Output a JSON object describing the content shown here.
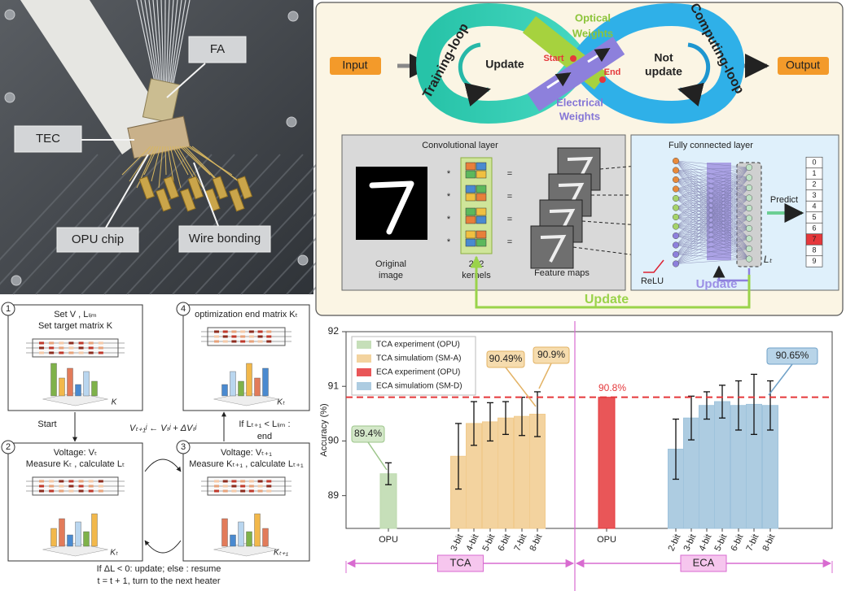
{
  "photo": {
    "labels": [
      "FA",
      "TEC",
      "OPU chip",
      "Wire bonding"
    ]
  },
  "loop": {
    "input": "Input",
    "output": "Output",
    "training_loop": "Training-loop",
    "computing_loop": "Computing-loop",
    "optical_weights": [
      "Optical",
      "Weights"
    ],
    "electrical_weights": [
      "Electrical",
      "Weights"
    ],
    "update": "Update",
    "not_update": [
      "Not",
      "update"
    ],
    "start": "Start",
    "end": "End"
  },
  "network": {
    "conv_title": "Convolutional layer",
    "fc_title": "Fully connected layer",
    "original_image": [
      "Original",
      "image"
    ],
    "kernels": [
      "2×2",
      "kernels"
    ],
    "feature_maps": "Feature maps",
    "conv_ops": [
      "*",
      "="
    ],
    "relu": "ReLU",
    "fc_update": "Update",
    "predict": "Predict",
    "loss": "Lₜ",
    "outputs": [
      "0",
      "1",
      "2",
      "3",
      "4",
      "5",
      "6",
      "7",
      "8",
      "9"
    ],
    "update": "Update"
  },
  "flowchart": {
    "steps": [
      {
        "number": "1",
        "lines": [
          "Set V , Lₗᵢₘ",
          "Set target matrix K"
        ],
        "matrix": "K"
      },
      {
        "number": "2",
        "lines": [
          "Voltage: Vₜ",
          "Measure Kₜ , calculate Lₜ"
        ],
        "matrix": "Kₜ"
      },
      {
        "number": "3",
        "lines": [
          "Voltage: Vₜ₊₁",
          "Measure Kₜ₊₁ , calculate Lₜ₊₁"
        ],
        "matrix": "Kₜ₊₁"
      },
      {
        "number": "4",
        "lines": [
          "optimization end matrix Kₜ"
        ],
        "matrix": "Kₜ"
      }
    ],
    "start": "Start",
    "update_rule": "Vₜ₊₁ʲ ← Vₜʲ + ΔVₜʲ",
    "end_condition": [
      "If Lₜ₊₁ < Lₗᵢₘ :",
      "end"
    ],
    "footer": [
      "If ΔL < 0: update; else : resume",
      "t = t + 1, turn to the next heater"
    ]
  },
  "chart_data": {
    "type": "bar",
    "ylabel": "Accuracy (%)",
    "categories": [
      "OPU",
      "3-bit",
      "4-bit",
      "5-bit",
      "6-bit",
      "7-bit",
      "8-bit",
      "OPU",
      "2-bit",
      "3-bit",
      "4-bit",
      "5-bit",
      "6-bit",
      "7-bit",
      "8-bit"
    ],
    "groups": [
      "TCA",
      "ECA"
    ],
    "series": [
      {
        "name": "TCA experiment (OPU)",
        "color": "#bcd9ad",
        "values": [
          89.4,
          null,
          null,
          null,
          null,
          null,
          null,
          null,
          null,
          null,
          null,
          null,
          null,
          null,
          null
        ],
        "errors": [
          0.2,
          null,
          null,
          null,
          null,
          null,
          null,
          null,
          null,
          null,
          null,
          null,
          null,
          null,
          null
        ],
        "value_labels": [
          "89.4%",
          null,
          null,
          null,
          null,
          null,
          null,
          null,
          null,
          null,
          null,
          null,
          null,
          null,
          null
        ]
      },
      {
        "name": "TCA simulatiom (SM-A)",
        "color": "#f1cb8e",
        "values": [
          null,
          89.72,
          90.32,
          90.35,
          90.42,
          90.45,
          90.49,
          null,
          null,
          null,
          null,
          null,
          null,
          null,
          null
        ],
        "errors": [
          null,
          0.6,
          0.4,
          0.35,
          0.3,
          0.35,
          0.41,
          null,
          null,
          null,
          null,
          null,
          null,
          null,
          null
        ],
        "value_labels": [
          null,
          null,
          null,
          null,
          null,
          null,
          "90.49%",
          null,
          null,
          null,
          null,
          null,
          null,
          null,
          null
        ]
      },
      {
        "name": "ECA experiment (OPU)",
        "color": "#e5383b",
        "values": [
          null,
          null,
          null,
          null,
          null,
          null,
          null,
          90.8,
          null,
          null,
          null,
          null,
          null,
          null,
          null
        ],
        "errors": [
          null,
          null,
          null,
          null,
          null,
          null,
          null,
          null,
          null,
          null,
          null,
          null,
          null,
          null,
          null
        ],
        "value_labels": [
          null,
          null,
          null,
          null,
          null,
          null,
          null,
          "90.8%",
          null,
          null,
          null,
          null,
          null,
          null,
          null
        ]
      },
      {
        "name": "ECA simulatiom (SM-D)",
        "color": "#9fc3dc",
        "values": [
          null,
          null,
          null,
          null,
          null,
          null,
          null,
          null,
          89.85,
          90.42,
          90.65,
          90.72,
          90.65,
          90.67,
          90.65
        ],
        "errors": [
          null,
          null,
          null,
          null,
          null,
          null,
          null,
          null,
          0.55,
          0.4,
          0.25,
          0.3,
          0.45,
          0.55,
          0.45
        ],
        "value_labels": [
          null,
          null,
          null,
          null,
          null,
          null,
          null,
          null,
          null,
          null,
          null,
          null,
          null,
          null,
          "90.65%"
        ]
      }
    ],
    "annotations": [
      "90.9%"
    ],
    "reference_line": 90.8,
    "reference_color": "#e5383b",
    "ylim": [
      88.4,
      92
    ],
    "yticks": [
      89,
      90,
      91,
      92
    ],
    "legend": "upper left",
    "grid": false
  }
}
